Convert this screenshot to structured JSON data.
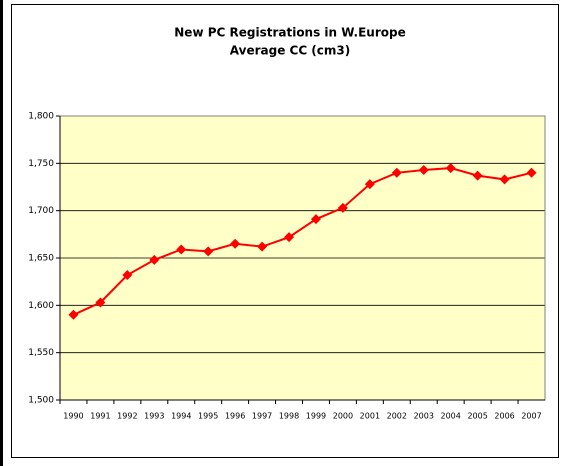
{
  "chart_data": {
    "type": "line",
    "title": "New PC Registrations in W.Europe",
    "subtitle": "Average CC (cm3)",
    "categories": [
      "1990",
      "1991",
      "1992",
      "1993",
      "1994",
      "1995",
      "1996",
      "1997",
      "1998",
      "1999",
      "2000",
      "2001",
      "2002",
      "2003",
      "2004",
      "2005",
      "2006",
      "2007"
    ],
    "values": [
      1590,
      1603,
      1632,
      1648,
      1659,
      1657,
      1665,
      1662,
      1672,
      1691,
      1703,
      1728,
      1740,
      1743,
      1745,
      1737,
      1733,
      1740
    ],
    "color": "#ff0000",
    "ylim": [
      1500,
      1800
    ],
    "yticks": [
      {
        "value": 1500,
        "label": "1,500"
      },
      {
        "value": 1550,
        "label": "1,550"
      },
      {
        "value": 1600,
        "label": "1,600"
      },
      {
        "value": 1650,
        "label": "1,650"
      },
      {
        "value": 1700,
        "label": "1,700"
      },
      {
        "value": 1750,
        "label": "1,750"
      },
      {
        "value": 1800,
        "label": "1,800"
      }
    ],
    "grid": true
  }
}
